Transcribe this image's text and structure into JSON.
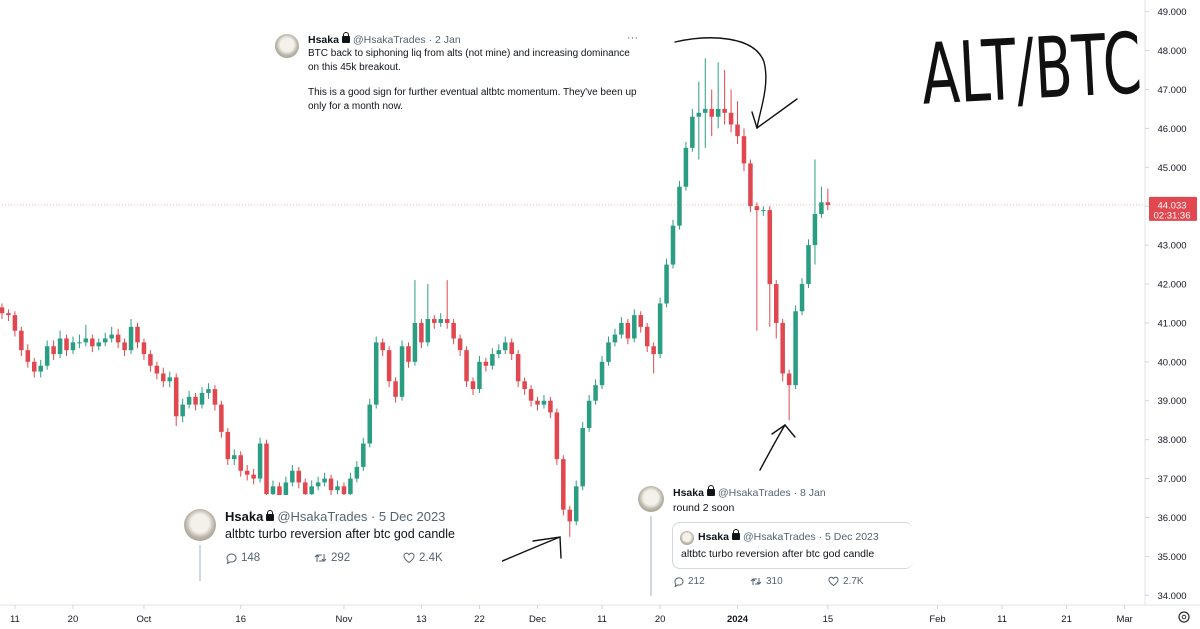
{
  "chart_data": {
    "type": "candlestick",
    "annotation": "ALT/BTC",
    "x": [
      "2023-09-09",
      "2023-09-10",
      "2023-09-11",
      "2023-09-12",
      "2023-09-13",
      "2023-09-14",
      "2023-09-15",
      "2023-09-16",
      "2023-09-17",
      "2023-09-18",
      "2023-09-19",
      "2023-09-20",
      "2023-09-21",
      "2023-09-22",
      "2023-09-23",
      "2023-09-24",
      "2023-09-25",
      "2023-09-26",
      "2023-09-27",
      "2023-09-28",
      "2023-09-29",
      "2023-09-30",
      "2023-10-01",
      "2023-10-02",
      "2023-10-03",
      "2023-10-04",
      "2023-10-05",
      "2023-10-06",
      "2023-10-07",
      "2023-10-08",
      "2023-10-09",
      "2023-10-10",
      "2023-10-11",
      "2023-10-12",
      "2023-10-13",
      "2023-10-14",
      "2023-10-15",
      "2023-10-16",
      "2023-10-17",
      "2023-10-18",
      "2023-10-19",
      "2023-10-20",
      "2023-10-21",
      "2023-10-22",
      "2023-10-23",
      "2023-10-24",
      "2023-10-25",
      "2023-10-26",
      "2023-10-27",
      "2023-10-28",
      "2023-10-29",
      "2023-10-30",
      "2023-10-31",
      "2023-11-01",
      "2023-11-02",
      "2023-11-03",
      "2023-11-04",
      "2023-11-05",
      "2023-11-06",
      "2023-11-07",
      "2023-11-08",
      "2023-11-09",
      "2023-11-10",
      "2023-11-11",
      "2023-11-12",
      "2023-11-13",
      "2023-11-14",
      "2023-11-15",
      "2023-11-16",
      "2023-11-17",
      "2023-11-18",
      "2023-11-19",
      "2023-11-20",
      "2023-11-21",
      "2023-11-22",
      "2023-11-23",
      "2023-11-24",
      "2023-11-25",
      "2023-11-26",
      "2023-11-27",
      "2023-11-28",
      "2023-11-29",
      "2023-11-30",
      "2023-12-01",
      "2023-12-02",
      "2023-12-03",
      "2023-12-04",
      "2023-12-05",
      "2023-12-06",
      "2023-12-07",
      "2023-12-08",
      "2023-12-09",
      "2023-12-10",
      "2023-12-11",
      "2023-12-12",
      "2023-12-13",
      "2023-12-14",
      "2023-12-15",
      "2023-12-16",
      "2023-12-17",
      "2023-12-18",
      "2023-12-19",
      "2023-12-20",
      "2023-12-21",
      "2023-12-22",
      "2023-12-23",
      "2023-12-24",
      "2023-12-25",
      "2023-12-26",
      "2023-12-27",
      "2023-12-28",
      "2023-12-29",
      "2023-12-30",
      "2023-12-31",
      "2024-01-01",
      "2024-01-02",
      "2024-01-03",
      "2024-01-04",
      "2024-01-05",
      "2024-01-06",
      "2024-01-07",
      "2024-01-08",
      "2024-01-09",
      "2024-01-10",
      "2024-01-11",
      "2024-01-12",
      "2024-01-13",
      "2024-01-14",
      "2024-01-15"
    ],
    "open": [
      41.4,
      41.25,
      41.2,
      40.8,
      40.3,
      40.0,
      39.75,
      39.9,
      40.4,
      40.2,
      40.6,
      40.3,
      40.5,
      40.5,
      40.6,
      40.4,
      40.5,
      40.6,
      40.7,
      40.5,
      40.3,
      40.9,
      40.5,
      40.2,
      39.9,
      39.7,
      39.5,
      39.6,
      38.6,
      38.9,
      39.1,
      38.9,
      39.2,
      39.3,
      38.9,
      38.2,
      37.5,
      37.6,
      37.2,
      37.1,
      37.0,
      37.9,
      36.6,
      36.8,
      36.5,
      36.9,
      37.2,
      36.9,
      36.6,
      36.8,
      36.9,
      37.0,
      36.7,
      36.8,
      36.6,
      37.0,
      37.3,
      37.9,
      38.9,
      40.5,
      40.3,
      39.5,
      39.1,
      40.4,
      40.0,
      41.0,
      40.5,
      41.1,
      41.0,
      41.1,
      41.0,
      40.6,
      40.3,
      39.5,
      39.3,
      40.0,
      39.9,
      40.2,
      40.3,
      40.5,
      40.2,
      39.5,
      39.3,
      39.0,
      38.9,
      39.0,
      38.7,
      37.5,
      36.2,
      35.9,
      36.8,
      38.3,
      39.0,
      39.4,
      40.0,
      40.5,
      40.7,
      41.0,
      40.6,
      41.2,
      40.9,
      40.4,
      40.2,
      41.5,
      42.5,
      43.5,
      44.5,
      45.5,
      46.3,
      46.4,
      46.5,
      46.3,
      46.5,
      46.4,
      46.1,
      45.8,
      45.1,
      44.0,
      43.9,
      43.9,
      42.0,
      41.0,
      39.7,
      39.4,
      41.3,
      42.0,
      43.0,
      43.8,
      44.1
    ],
    "high": [
      41.5,
      41.35,
      41.3,
      40.9,
      40.45,
      40.1,
      40.05,
      40.55,
      40.55,
      40.8,
      40.7,
      40.65,
      40.7,
      40.95,
      40.7,
      40.6,
      40.75,
      40.9,
      40.85,
      40.6,
      41.1,
      41.0,
      40.6,
      40.3,
      40.0,
      39.85,
      39.75,
      39.7,
      39.05,
      39.25,
      39.2,
      39.35,
      39.45,
      39.4,
      39.0,
      38.3,
      37.75,
      37.7,
      37.35,
      37.25,
      38.05,
      38.0,
      36.95,
      36.9,
      37.05,
      37.35,
      37.3,
      37.0,
      36.95,
      37.05,
      37.15,
      37.1,
      36.95,
      36.9,
      37.15,
      37.45,
      38.05,
      39.05,
      40.65,
      40.6,
      40.4,
      39.6,
      40.55,
      40.5,
      42.1,
      41.1,
      42.0,
      41.2,
      41.25,
      42.1,
      41.1,
      40.7,
      40.4,
      39.6,
      40.15,
      40.1,
      40.35,
      40.45,
      40.65,
      40.6,
      40.3,
      39.6,
      39.4,
      39.1,
      39.15,
      39.1,
      38.8,
      37.6,
      36.3,
      36.95,
      38.45,
      39.15,
      39.55,
      40.15,
      40.65,
      40.85,
      41.15,
      41.1,
      41.35,
      41.3,
      41.0,
      40.5,
      41.65,
      42.65,
      43.65,
      44.65,
      45.65,
      46.5,
      47.2,
      47.8,
      47.0,
      47.7,
      47.5,
      47.0,
      46.7,
      46.0,
      45.2,
      44.1,
      44.0,
      44.0,
      42.1,
      41.1,
      39.8,
      41.45,
      42.15,
      43.15,
      45.2,
      44.5,
      44.45
    ],
    "low": [
      41.1,
      41.05,
      40.65,
      40.15,
      39.85,
      39.6,
      39.6,
      39.8,
      40.05,
      40.1,
      40.15,
      40.2,
      40.35,
      40.4,
      40.25,
      40.3,
      40.4,
      40.5,
      40.35,
      40.15,
      40.2,
      40.35,
      40.05,
      39.75,
      39.55,
      39.35,
      39.35,
      38.35,
      38.45,
      38.8,
      38.75,
      38.8,
      39.05,
      38.75,
      38.05,
      37.35,
      37.35,
      37.05,
      36.95,
      36.85,
      36.9,
      36.45,
      36.45,
      36.35,
      36.4,
      36.8,
      36.75,
      36.45,
      36.5,
      36.7,
      36.8,
      36.55,
      36.6,
      36.45,
      36.5,
      36.9,
      37.2,
      37.8,
      38.8,
      40.15,
      39.35,
      38.95,
      39.0,
      39.85,
      39.9,
      40.35,
      40.4,
      40.85,
      40.9,
      40.85,
      40.45,
      40.15,
      39.35,
      39.15,
      39.2,
      39.75,
      39.8,
      40.1,
      40.2,
      40.05,
      39.35,
      39.15,
      38.85,
      38.75,
      38.8,
      38.55,
      37.35,
      36.05,
      35.5,
      35.8,
      36.7,
      38.2,
      38.9,
      39.3,
      39.9,
      40.4,
      40.6,
      40.45,
      40.5,
      40.75,
      40.25,
      39.7,
      40.1,
      41.4,
      42.4,
      43.4,
      44.4,
      45.4,
      45.2,
      45.5,
      45.8,
      46.0,
      46.1,
      45.9,
      45.6,
      44.9,
      43.85,
      40.8,
      43.75,
      40.9,
      40.6,
      39.5,
      38.5,
      39.3,
      41.2,
      41.9,
      42.5,
      43.7,
      43.9
    ],
    "close": [
      41.25,
      41.2,
      40.8,
      40.3,
      40.0,
      39.75,
      39.9,
      40.4,
      40.2,
      40.6,
      40.3,
      40.5,
      40.5,
      40.6,
      40.4,
      40.5,
      40.6,
      40.7,
      40.5,
      40.3,
      40.9,
      40.5,
      40.2,
      39.9,
      39.7,
      39.5,
      39.6,
      38.6,
      38.9,
      39.1,
      38.9,
      39.2,
      39.3,
      38.9,
      38.2,
      37.5,
      37.6,
      37.2,
      37.1,
      37.0,
      37.9,
      36.6,
      36.8,
      36.5,
      36.9,
      37.2,
      36.9,
      36.6,
      36.8,
      36.9,
      37.0,
      36.7,
      36.8,
      36.6,
      37.0,
      37.3,
      37.9,
      38.9,
      40.5,
      40.3,
      39.5,
      39.1,
      40.4,
      40.0,
      41.0,
      40.5,
      41.1,
      41.0,
      41.1,
      41.0,
      40.6,
      40.3,
      39.5,
      39.3,
      40.0,
      39.9,
      40.2,
      40.3,
      40.5,
      40.2,
      39.5,
      39.3,
      39.0,
      38.9,
      39.0,
      38.7,
      37.5,
      36.2,
      35.9,
      36.8,
      38.3,
      39.0,
      39.4,
      40.0,
      40.5,
      40.7,
      41.0,
      40.6,
      41.2,
      40.9,
      40.4,
      40.2,
      41.5,
      42.5,
      43.5,
      44.5,
      45.5,
      46.3,
      46.4,
      46.5,
      46.3,
      46.5,
      46.4,
      46.1,
      45.8,
      45.1,
      44.0,
      43.9,
      43.9,
      42.0,
      41.0,
      39.7,
      39.4,
      41.3,
      42.0,
      43.0,
      43.8,
      44.1,
      44.03
    ],
    "up_color": "#2a9d82",
    "down_color": "#e0474f",
    "xlim": [
      "2023-09-09",
      "2024-03-04"
    ],
    "xticks": [
      {
        "value": "2023-09-11",
        "label": "11"
      },
      {
        "value": "2023-09-20",
        "label": "20"
      },
      {
        "value": "2023-10-01",
        "label": "Oct"
      },
      {
        "value": "2023-10-16",
        "label": "16"
      },
      {
        "value": "2023-11-01",
        "label": "Nov"
      },
      {
        "value": "2023-11-13",
        "label": "13"
      },
      {
        "value": "2023-11-22",
        "label": "22"
      },
      {
        "value": "2023-12-01",
        "label": "Dec"
      },
      {
        "value": "2023-12-11",
        "label": "11"
      },
      {
        "value": "2023-12-20",
        "label": "20"
      },
      {
        "value": "2024-01-01",
        "label": "2024"
      },
      {
        "value": "2024-01-15",
        "label": "15"
      },
      {
        "value": "2024-02-01",
        "label": "Feb"
      },
      {
        "value": "2024-02-11",
        "label": "11"
      },
      {
        "value": "2024-02-21",
        "label": "21"
      },
      {
        "value": "2024-03-01",
        "label": "Mar"
      }
    ],
    "ylim": [
      33.75,
      49.3
    ],
    "yticks": [
      {
        "value": 34,
        "label": "34.000"
      },
      {
        "value": 35,
        "label": "35.000"
      },
      {
        "value": 36,
        "label": "36.000"
      },
      {
        "value": 37,
        "label": "37.000"
      },
      {
        "value": 38,
        "label": "38.000"
      },
      {
        "value": 39,
        "label": "39.000"
      },
      {
        "value": 40,
        "label": "40.000"
      },
      {
        "value": 41,
        "label": "41.000"
      },
      {
        "value": 42,
        "label": "42.000"
      },
      {
        "value": 43,
        "label": "43.000"
      },
      {
        "value": 44,
        "label": "44.000"
      },
      {
        "value": 45,
        "label": "45.000"
      },
      {
        "value": 46,
        "label": "46.000"
      },
      {
        "value": 47,
        "label": "47.000"
      },
      {
        "value": 48,
        "label": "48.000"
      },
      {
        "value": 49,
        "label": "49.000"
      }
    ],
    "grid": false,
    "last_price": 44.033,
    "countdown": "02:31:36"
  },
  "tweets": [
    {
      "name": "Hsaka",
      "handle": "@HsakaTrades",
      "date": "· 2 Jan",
      "more": "···",
      "paragraphs": [
        [
          "BTC back to siphoning liq from alts (not mine) and increasing dominance",
          "on this 45k breakout."
        ],
        [
          "This is a good sign for further eventual altbtc momentum. They've been up",
          "only for a month now."
        ]
      ]
    },
    {
      "name": "Hsaka",
      "handle": "@HsakaTrades",
      "date": "· 5 Dec 2023",
      "text": "altbtc turbo reversion after btc god candle",
      "replies": "148",
      "retweets": "292",
      "likes": "2.4K"
    },
    {
      "name": "Hsaka",
      "handle": "@HsakaTrades",
      "date": "· 8 Jan",
      "text": "round 2 soon",
      "quote": {
        "name": "Hsaka",
        "handle": "@HsakaTrades",
        "date": "· 5 Dec 2023",
        "text": "altbtc turbo reversion after btc god candle"
      },
      "replies": "212",
      "retweets": "310",
      "likes": "2.7K"
    }
  ]
}
